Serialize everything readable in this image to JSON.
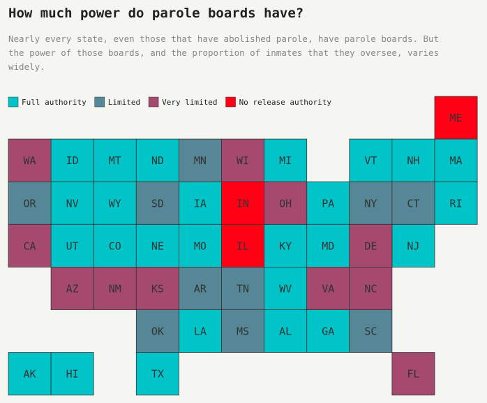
{
  "header": {
    "title": "How much power do parole boards have?",
    "subtitle": [
      "Nearly every state, even those that have abolished parole, have parole boards. But",
      "the power of those boards, and the proportion of inmates that they oversee, varies",
      "widely."
    ]
  },
  "legend": [
    {
      "label": "Full authority",
      "color": "#00c4c8",
      "states": [
        "ID",
        "MT",
        "ND",
        "MI",
        "VT",
        "NH",
        "MA",
        "NV",
        "WY",
        "IA",
        "PA",
        "RI",
        "UT",
        "CO",
        "NE",
        "MO",
        "KY",
        "MD",
        "NJ",
        "WV",
        "LA",
        "AL",
        "GA",
        "AK",
        "HI",
        "TX"
      ]
    },
    {
      "label": "Limited",
      "color": "#568796",
      "states": [
        "MN",
        "OR",
        "SD",
        "NY",
        "CT",
        "AR",
        "TN",
        "OK",
        "MS",
        "SC"
      ]
    },
    {
      "label": "Very limited",
      "color": "#a5496f",
      "states": [
        "WA",
        "WI",
        "OH",
        "CA",
        "DE",
        "AZ",
        "NM",
        "KS",
        "VA",
        "NC",
        "FL"
      ]
    },
    {
      "label": "No release authority",
      "color": "#ff0014",
      "states": [
        "ME",
        "IN",
        "IL"
      ]
    }
  ]
}
